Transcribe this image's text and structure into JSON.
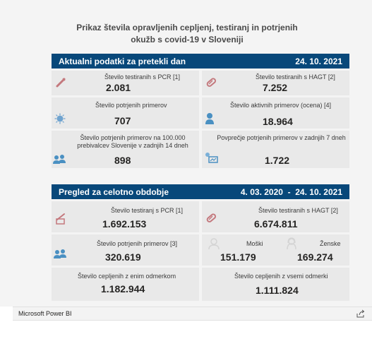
{
  "title": "Prikaz števila opravljenih cepljenj, testiranj in potrjenih okužb s covid-19 v Sloveniji",
  "daily": {
    "header": "Aktualni podatki za pretekli dan",
    "date": "24. 10. 2021",
    "pcr_label": "Število testiranih s PCR [1]",
    "pcr_value": "2.081",
    "hagt_label": "Število testiranih s HAGT [2]",
    "hagt_value": "7.252",
    "confirmed_label": "Število potrjenih primerov",
    "confirmed_value": "707",
    "active_label": "Število aktivnih primerov (ocena) [4]",
    "active_value": "18.964",
    "per100k_label": "Število potrjenih primerov na 100.000 prebivalcev Slovenije v zadnjih 14 dneh",
    "per100k_value": "898",
    "avg7_label": "Povprečje potrjenih primerov v zadnjih 7 dneh",
    "avg7_value": "1.722"
  },
  "total": {
    "header": "Pregled za celotno obdobje",
    "date_range": "4. 03. 2020  -  24. 10. 2021",
    "pcr_label": "Število testiranj s PCR [1]",
    "pcr_value": "1.692.153",
    "hagt_label": "Število testiranih s HAGT [2]",
    "hagt_value": "6.674.811",
    "confirmed_label": "Število potrjenih primerov [3]",
    "confirmed_value": "320.619",
    "male_label": "Moški",
    "male_value": "151.179",
    "female_label": "Ženske",
    "female_value": "169.274",
    "vacc_one_label": "Število cepljenih z enim odmerkom",
    "vacc_one_value": "1.182.944",
    "vacc_all_label": "Število cepljenih z vsemi odmerki",
    "vacc_all_value": "1.111.824"
  },
  "footer": {
    "brand": "Microsoft Power BI",
    "share_icon": "share-icon"
  },
  "colors": {
    "header_bg": "#08487a",
    "icon_red": "#c4787d",
    "icon_blue": "#4a90c2"
  }
}
